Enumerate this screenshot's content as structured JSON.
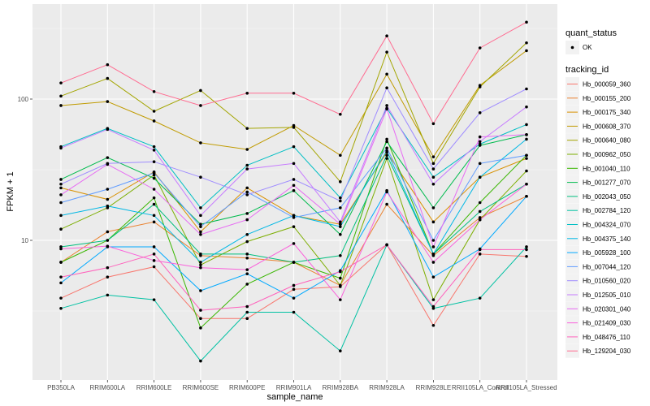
{
  "chart_data": {
    "type": "line",
    "title": "",
    "xlabel": "sample_name",
    "ylabel": "FPKM + 1",
    "y_scale": "log10",
    "ylim": [
      1.2,
      380
    ],
    "y_ticks": [
      10,
      100
    ],
    "y_tick_labels": [
      "10",
      "100"
    ],
    "grid": true,
    "legend_position": "right",
    "categories": [
      "PB350LA",
      "RRIM600LA",
      "RRIM600LE",
      "RRIM600SE",
      "RRIM600PE",
      "RRIM901LA",
      "RRIM928BA",
      "RRIM928LA",
      "RRIM928LE",
      "RRII105LA_Control",
      "RRII105LA_Stressed"
    ],
    "point_legend": {
      "title": "quant_status",
      "items": [
        "OK"
      ]
    },
    "color_legend_title": "tracking_id",
    "series": [
      {
        "name": "Hb_000059_360",
        "color": "#F8766D",
        "values": [
          3.9,
          5.5,
          6.5,
          2.8,
          2.8,
          4.5,
          4.7,
          9.3,
          2.5,
          8.0,
          7.7
        ]
      },
      {
        "name": "Hb_000155_200",
        "color": "#EA8331",
        "values": [
          7.0,
          11.5,
          13.5,
          7.8,
          7.5,
          7.0,
          4.8,
          18.0,
          7.8,
          14.5,
          20.5
        ]
      },
      {
        "name": "Hb_000175_340",
        "color": "#D89000",
        "values": [
          23.5,
          19.5,
          30.5,
          11.5,
          23.5,
          15.0,
          13.0,
          42.0,
          13.5,
          28.0,
          38.0
        ]
      },
      {
        "name": "Hb_000608_370",
        "color": "#C09B00",
        "values": [
          90.0,
          96.0,
          70.0,
          49.0,
          44.0,
          65.0,
          40.0,
          150.0,
          39.0,
          125.0,
          220.0
        ]
      },
      {
        "name": "Hb_000640_080",
        "color": "#A3A500",
        "values": [
          105.0,
          140.0,
          82.0,
          115.0,
          62.0,
          63.0,
          26.0,
          215.0,
          35.0,
          122.0,
          250.0
        ]
      },
      {
        "name": "Hb_000962_050",
        "color": "#7CAE00",
        "values": [
          12.0,
          17.0,
          29.0,
          6.7,
          9.8,
          12.5,
          4.8,
          38.0,
          3.8,
          14.0,
          31.0
        ]
      },
      {
        "name": "Hb_001040_110",
        "color": "#39B600",
        "values": [
          7.0,
          10.0,
          20.0,
          2.4,
          4.9,
          7.0,
          5.4,
          52.0,
          8.0,
          18.5,
          40.0
        ]
      },
      {
        "name": "Hb_001277_070",
        "color": "#00BB4E",
        "values": [
          27.0,
          38.5,
          27.5,
          13.0,
          15.5,
          22.5,
          11.0,
          50.0,
          17.0,
          47.0,
          56.0
        ]
      },
      {
        "name": "Hb_002043_050",
        "color": "#00BF7D",
        "values": [
          9.0,
          10.0,
          18.0,
          8.0,
          8.0,
          7.0,
          7.8,
          40.0,
          8.0,
          16.0,
          25.0
        ]
      },
      {
        "name": "Hb_002784_120",
        "color": "#00C1A3",
        "values": [
          3.3,
          4.1,
          3.8,
          1.4,
          3.1,
          3.1,
          1.65,
          9.3,
          3.3,
          3.9,
          9.0
        ]
      },
      {
        "name": "Hb_004324_070",
        "color": "#00BFC4",
        "values": [
          46.0,
          62.0,
          46.0,
          17.0,
          34.0,
          46.0,
          20.0,
          86.0,
          28.0,
          48.0,
          66.0
        ]
      },
      {
        "name": "Hb_004375_140",
        "color": "#00B8E5",
        "values": [
          15.0,
          17.5,
          15.0,
          7.0,
          11.0,
          15.0,
          12.5,
          43.0,
          8.0,
          28.0,
          52.0
        ]
      },
      {
        "name": "Hb_005928_100",
        "color": "#00A9FF",
        "values": [
          5.0,
          9.0,
          9.0,
          4.4,
          5.8,
          3.9,
          6.1,
          22.5,
          5.5,
          8.7,
          20.5
        ]
      },
      {
        "name": "Hb_007044_120",
        "color": "#619CFF",
        "values": [
          18.5,
          23.0,
          30.0,
          12.5,
          22.0,
          14.5,
          17.0,
          45.0,
          10.0,
          35.0,
          40.0
        ]
      },
      {
        "name": "Hb_010560_020",
        "color": "#9F8CFF",
        "values": [
          25.0,
          35.0,
          36.0,
          28.0,
          21.0,
          27.0,
          19.0,
          120.0,
          32.0,
          80.0,
          118.0
        ]
      },
      {
        "name": "Hb_012505_010",
        "color": "#C77CFF",
        "values": [
          45.0,
          61.0,
          43.5,
          15.0,
          32.0,
          35.0,
          13.5,
          90.0,
          25.0,
          50.0,
          88.0
        ]
      },
      {
        "name": "Hb_020301_040",
        "color": "#E76BF3",
        "values": [
          21.0,
          34.5,
          23.0,
          11.0,
          14.0,
          24.5,
          13.0,
          85.0,
          9.0,
          54.0,
          56.0
        ]
      },
      {
        "name": "Hb_021409_030",
        "color": "#FA62DB",
        "values": [
          8.7,
          9.1,
          7.2,
          6.4,
          6.2,
          9.5,
          3.8,
          22.0,
          7.0,
          14.0,
          25.0
        ]
      },
      {
        "name": "Hb_048476_110",
        "color": "#FF62BC",
        "values": [
          5.5,
          6.4,
          8.0,
          3.2,
          3.4,
          4.8,
          6.0,
          9.3,
          3.4,
          8.6,
          8.6
        ]
      },
      {
        "name": "Hb_129204_030",
        "color": "#FF6C91",
        "values": [
          130.0,
          175.0,
          113.0,
          90.0,
          110.0,
          110.0,
          78.0,
          280.0,
          67.0,
          230.0,
          350.0
        ]
      }
    ]
  }
}
